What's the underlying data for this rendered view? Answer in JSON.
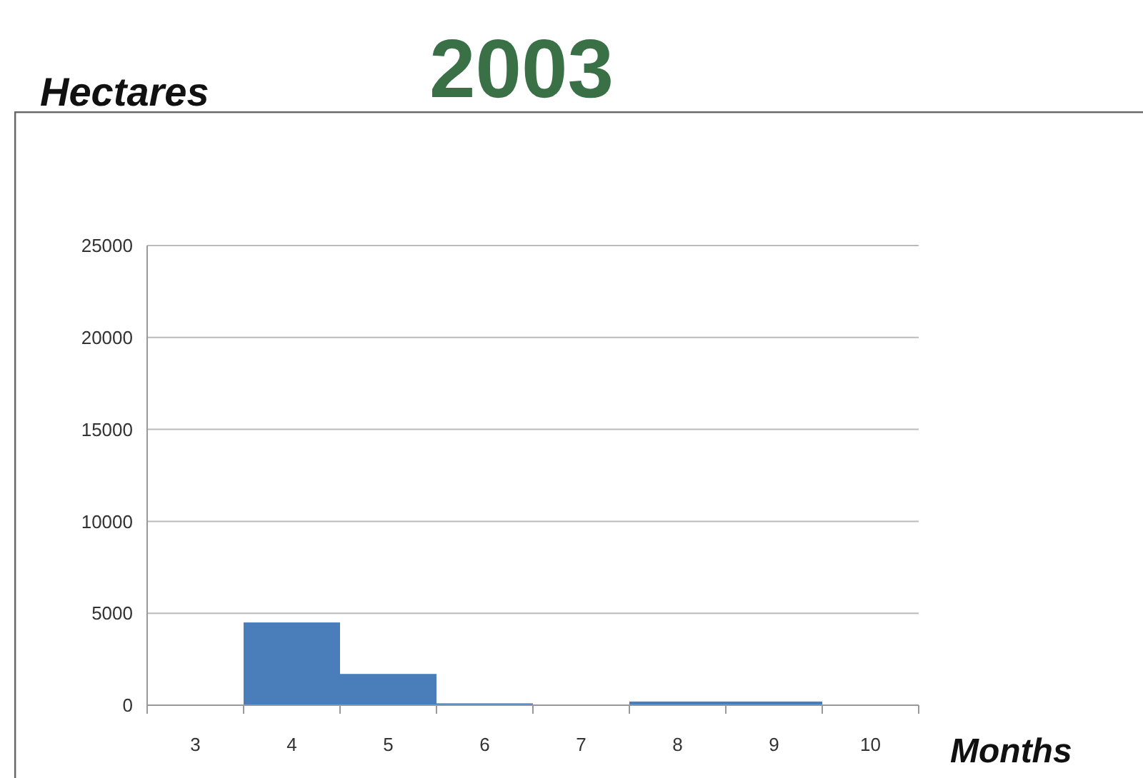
{
  "chart_data": {
    "type": "bar",
    "title": "2003",
    "ylabel": "Hectares",
    "xlabel": "Months",
    "categories": [
      "3",
      "4",
      "5",
      "6",
      "7",
      "8",
      "9",
      "10"
    ],
    "values": [
      0,
      4500,
      1700,
      100,
      0,
      200,
      200,
      0
    ],
    "color": "#4a7ebb",
    "ylim": [
      0,
      25000
    ],
    "yticks": [
      0,
      5000,
      10000,
      15000,
      20000,
      25000
    ],
    "grid": "y"
  }
}
